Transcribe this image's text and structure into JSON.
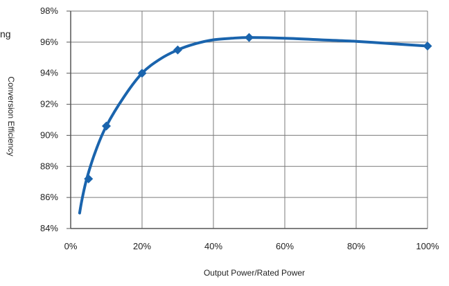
{
  "cut_label": "ng",
  "chart_data": {
    "type": "line",
    "title": "",
    "xlabel": "Output Power/Rated  Power",
    "ylabel": "Conversion Efficiency",
    "xlim": [
      0,
      100
    ],
    "ylim": [
      84,
      98
    ],
    "x_ticks": [
      0,
      20,
      40,
      60,
      80,
      100
    ],
    "y_ticks": [
      84,
      86,
      88,
      90,
      92,
      94,
      96,
      98
    ],
    "x_tick_labels": [
      "0%",
      "20%",
      "40%",
      "60%",
      "80%",
      "100%"
    ],
    "y_tick_labels": [
      "84%",
      "86%",
      "88%",
      "90%",
      "92%",
      "94%",
      "96%",
      "98%"
    ],
    "grid": true,
    "line_color": "#1a64ad",
    "grid_color": "#7a7a7a",
    "axis_color": "#555555",
    "series": [
      {
        "curve": [
          {
            "x": 2.5,
            "y": 85.0
          },
          {
            "x": 3.2,
            "y": 85.9
          },
          {
            "x": 4.5,
            "y": 87.2
          },
          {
            "x": 7,
            "y": 89.0
          },
          {
            "x": 10,
            "y": 90.6
          },
          {
            "x": 15,
            "y": 92.5
          },
          {
            "x": 20,
            "y": 94.0
          },
          {
            "x": 25,
            "y": 94.9
          },
          {
            "x": 30,
            "y": 95.5
          },
          {
            "x": 35,
            "y": 95.9
          },
          {
            "x": 40,
            "y": 96.15
          },
          {
            "x": 45,
            "y": 96.25
          },
          {
            "x": 50,
            "y": 96.3
          },
          {
            "x": 60,
            "y": 96.25
          },
          {
            "x": 70,
            "y": 96.15
          },
          {
            "x": 80,
            "y": 96.05
          },
          {
            "x": 90,
            "y": 95.9
          },
          {
            "x": 100,
            "y": 95.75
          }
        ],
        "markers": [
          {
            "x": 5,
            "y": 87.2
          },
          {
            "x": 10,
            "y": 90.6
          },
          {
            "x": 20,
            "y": 94.0
          },
          {
            "x": 30,
            "y": 95.5
          },
          {
            "x": 50,
            "y": 96.3
          },
          {
            "x": 100,
            "y": 95.75
          }
        ]
      }
    ]
  }
}
